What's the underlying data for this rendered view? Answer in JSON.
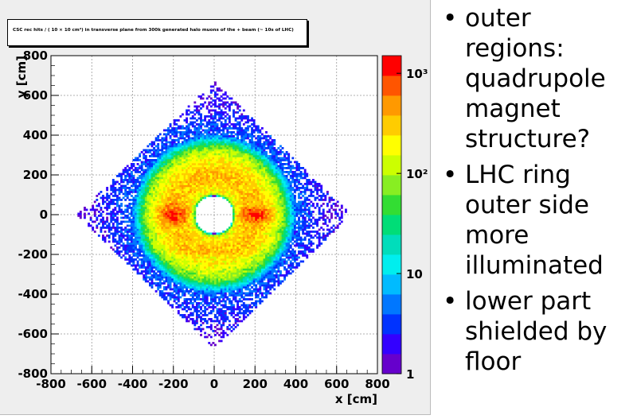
{
  "chart_data": {
    "type": "heatmap",
    "title": "CSC rec hits / ( 10 × 10 cm²) in transverse plane from 300k generated halo muons of the + beam (~ 10s of LHC)",
    "xlabel": "x [cm]",
    "ylabel": "y [cm]",
    "xlim": [
      -800,
      800
    ],
    "ylim": [
      -800,
      800
    ],
    "x_ticks": [
      "-800",
      "-600",
      "-400",
      "-200",
      "0",
      "200",
      "400",
      "600",
      "800"
    ],
    "y_ticks": [
      "-800",
      "-600",
      "-400",
      "-200",
      "0",
      "200",
      "400",
      "600",
      "800"
    ],
    "grid": true,
    "bin_size_cm": 10,
    "colorbar": {
      "scale": "log",
      "range": [
        1,
        1500
      ],
      "tick_labels": [
        {
          "value": 1,
          "label": "1"
        },
        {
          "value": 10,
          "label": "10"
        },
        {
          "value": 100,
          "label": "10²"
        },
        {
          "value": 1000,
          "label": "10³"
        }
      ],
      "palette": [
        "#6600cc",
        "#3300ff",
        "#0033ff",
        "#0077ff",
        "#00bbff",
        "#00eeee",
        "#00ddbb",
        "#00dd77",
        "#33dd33",
        "#88ee22",
        "#ccff00",
        "#ffff00",
        "#ffcc00",
        "#ff9900",
        "#ff5500",
        "#ff0000"
      ]
    },
    "distribution_features": {
      "inner_hole_radius_cm": 95,
      "dense_ring_outer_radius_cm": 340,
      "peak_counts_approx": 1000,
      "hotspots_cm": [
        [
          -200,
          0
        ],
        [
          200,
          0
        ]
      ],
      "outer_regions": "sparse diamond / quadrupole-like spread out to about 650 cm"
    }
  },
  "notes": {
    "bullets": [
      "outer regions: quadrupole magnet structure?",
      "LHC ring outer side more illuminated",
      "lower part shielded by floor"
    ]
  }
}
